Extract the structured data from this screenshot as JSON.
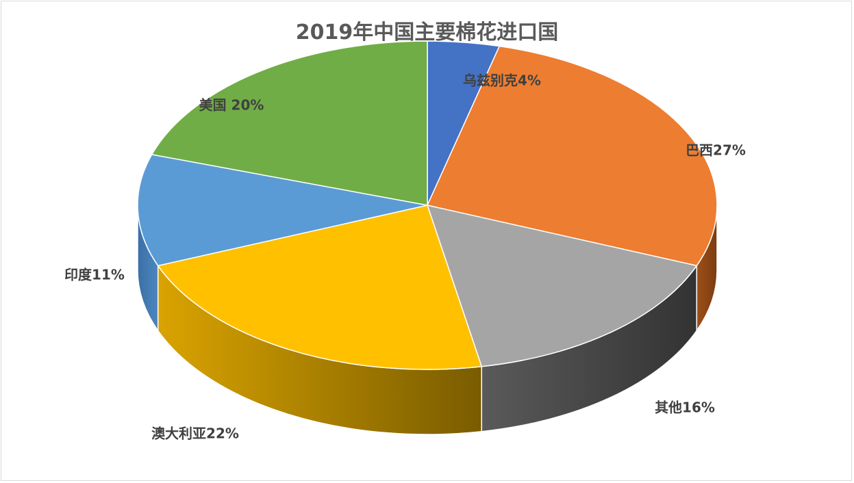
{
  "chart_data": {
    "type": "pie",
    "title": "2019年中国主要棉花进口国",
    "three_d": true,
    "slices": [
      {
        "label": "乌兹别克4%",
        "value": 4,
        "color": "#4472c4"
      },
      {
        "label": "巴西27%",
        "value": 27,
        "color": "#ed7d31"
      },
      {
        "label": "其他16%",
        "value": 16,
        "color": "#a5a5a5"
      },
      {
        "label": "澳大利亚22%",
        "value": 22,
        "color": "#ffc000"
      },
      {
        "label": "印度11%",
        "value": 11,
        "color": "#5b9bd5"
      },
      {
        "label": "美国 20%",
        "value": 20,
        "color": "#70ad47"
      }
    ],
    "legend": "none"
  }
}
